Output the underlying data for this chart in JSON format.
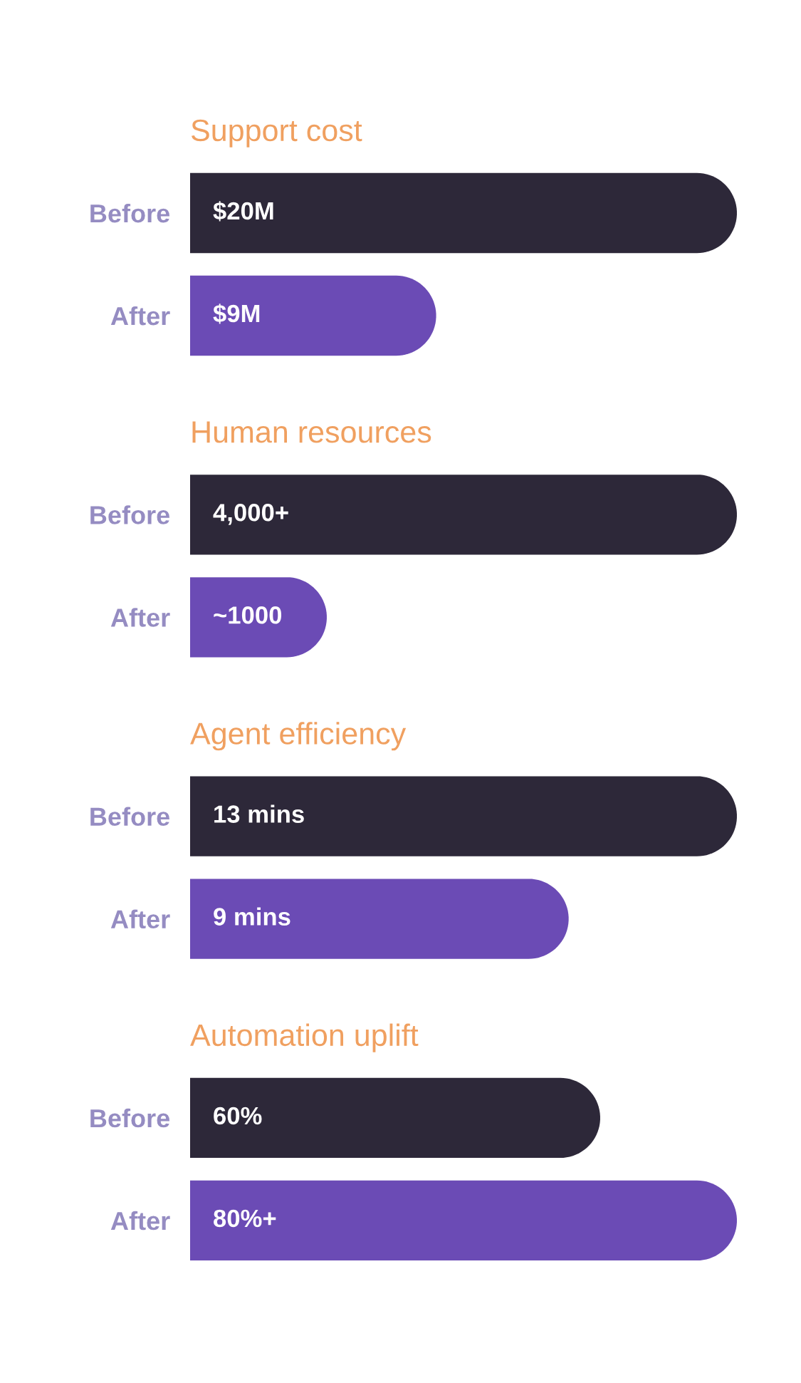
{
  "chart_data": [
    {
      "type": "bar",
      "orientation": "horizontal",
      "title": "Support cost",
      "categories": [
        "Before",
        "After"
      ],
      "values": [
        20,
        9
      ],
      "value_labels": [
        "$20M",
        "$9M"
      ],
      "colors": [
        "#2d2839",
        "#6b4bb5"
      ],
      "xlim": [
        0,
        20
      ],
      "tick_labels": "y"
    },
    {
      "type": "bar",
      "orientation": "horizontal",
      "title": "Human resources",
      "categories": [
        "Before",
        "After"
      ],
      "values": [
        4000,
        1000
      ],
      "value_labels": [
        "4,000+",
        "~1000"
      ],
      "colors": [
        "#2d2839",
        "#6b4bb5"
      ],
      "xlim": [
        0,
        4000
      ],
      "tick_labels": "y"
    },
    {
      "type": "bar",
      "orientation": "horizontal",
      "title": "Agent efficiency",
      "categories": [
        "Before",
        "After"
      ],
      "values": [
        13,
        9
      ],
      "value_labels": [
        "13 mins",
        "9 mins"
      ],
      "colors": [
        "#2d2839",
        "#6b4bb5"
      ],
      "xlim": [
        0,
        13
      ],
      "tick_labels": "y"
    },
    {
      "type": "bar",
      "orientation": "horizontal",
      "title": "Automation uplift",
      "categories": [
        "Before",
        "After"
      ],
      "values": [
        60,
        80
      ],
      "value_labels": [
        "60%",
        "80%+"
      ],
      "colors": [
        "#2d2839",
        "#6b4bb5"
      ],
      "xlim": [
        0,
        80
      ],
      "tick_labels": "y"
    }
  ]
}
